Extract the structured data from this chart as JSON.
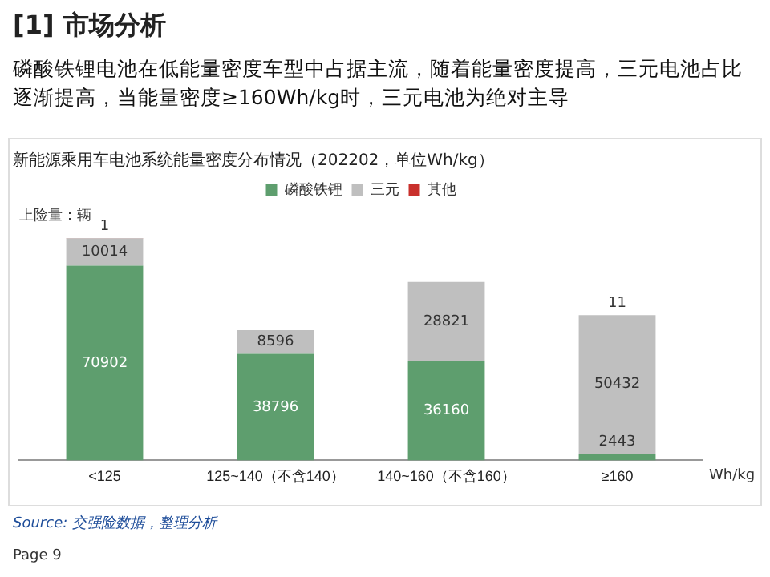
{
  "chart_data": {
    "type": "bar",
    "title": "新能源乘用车电池系统能量密度分布情况（202202，单位Wh/kg）",
    "subtitle": "磷酸铁锂电池在低能量密度车型中占据主流，随着能量密度提高，三元电池占比逐渐提高，当能量密度≥160Wh/kg时，三元电池为绝对主导",
    "ylabel": "上险量：辆",
    "xlabel": "Wh/kg",
    "categories": [
      "<125",
      "125~140（不含140）",
      "140~160（不含160）",
      "≥160"
    ],
    "series": [
      {
        "name": "磷酸铁锂",
        "color": "#5e9e6e",
        "values": [
          70902,
          38796,
          36160,
          2443
        ]
      },
      {
        "name": "三元",
        "color": "#bfbfbf",
        "values": [
          10014,
          8596,
          28821,
          50432
        ]
      },
      {
        "name": "其他",
        "color": "#c9302c",
        "values": [
          1,
          null,
          null,
          11
        ]
      }
    ],
    "stacked": true,
    "data_labels": true,
    "legend": "top",
    "grid": false,
    "annotations": [
      "[1] 市场分析",
      "Source: 交强险数据，整理分析",
      "Page 9"
    ]
  }
}
